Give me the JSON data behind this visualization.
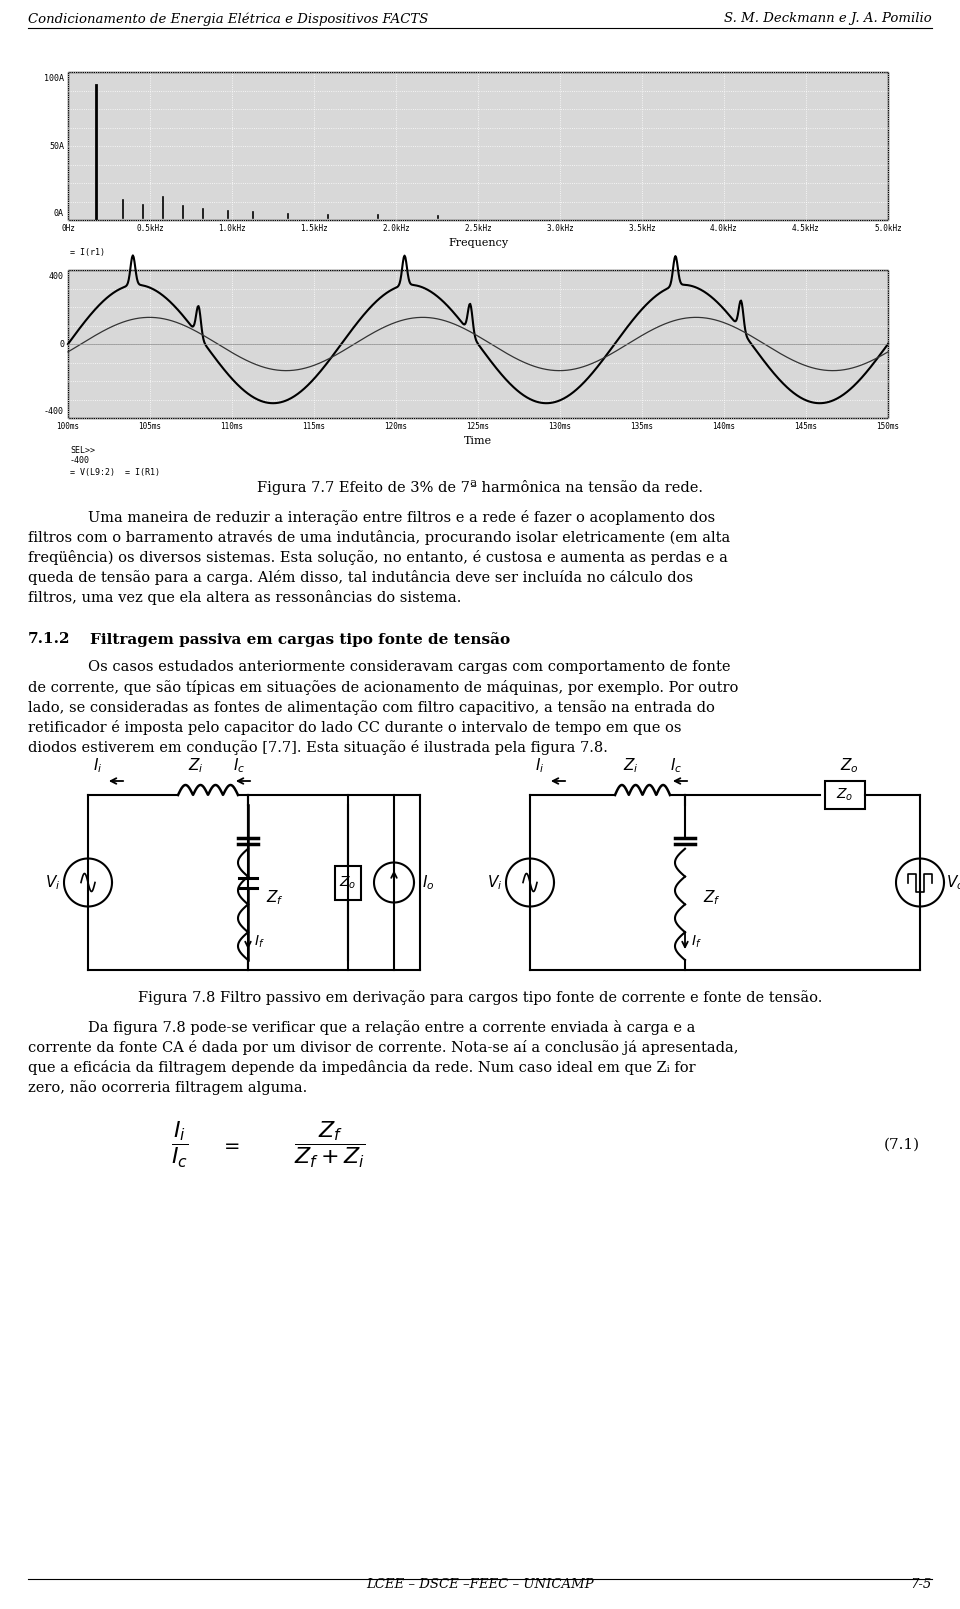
{
  "header_left": "Condicionamento de Energia Elétrica e Dispositivos FACTS",
  "header_right": "S. M. Deckmann e J. A. Pomilio",
  "footer_center": "LCEE – DSCE –FEEC – UNICAMP",
  "footer_right": "7-5",
  "fig_caption_1": "Figura 7.7 Efeito de 3% de 7ª harmônica na tensão da rede.",
  "fig_caption_2": "Figura 7.8 Filtro passivo em derivação para cargos tipo fonte de corrente e fonte de tensão.",
  "section_num": "7.1.2",
  "section_title": "Filtragem passiva em cargas tipo fonte de tensão",
  "eq1_num": "(7.1)",
  "bg_color": "#ffffff",
  "osc1_bg": "#d8d8d8",
  "osc2_bg": "#d8d8d8",
  "lines_p1": [
    "Uma maneira de reduzir a interação entre filtros e a rede é fazer o acoplamento dos",
    "filtros com o barramento através de uma indutância, procurando isolar eletricamente (em alta",
    "freqüência) os diversos sistemas. Esta solução, no entanto, é custosa e aumenta as perdas e a",
    "queda de tensão para a carga. Além disso, tal indutância deve ser incluída no cálculo dos",
    "filtros, uma vez que ela altera as ressonâncias do sistema."
  ],
  "lines_p2": [
    "Os casos estudados anteriormente consideravam cargas com comportamento de fonte",
    "de corrente, que são típicas em situações de acionamento de máquinas, por exemplo. Por outro",
    "lado, se consideradas as fontes de alimentação com filtro capacitivo, a tensão na entrada do",
    "retificador é imposta pelo capacitor do lado CC durante o intervalo de tempo em que os",
    "diodos estiverem em condução [7.7]. Esta situação é ilustrada pela figura 7.8."
  ],
  "lines_p3": [
    "Da figura 7.8 pode-se verificar que a relação entre a corrente enviada à carga e a",
    "corrente da fonte CA é dada por um divisor de corrente. Nota-se aí a conclusão já apresentada,",
    "que a eficácia da filtragem depende da impedância da rede. Num caso ideal em que Zᵢ for",
    "zero, não ocorreria filtragem alguma."
  ],
  "freq_labels": [
    "0Hz",
    "0.5kHz",
    "1.0kHz",
    "1.5kHz",
    "2.0kHz",
    "2.5kHz",
    "3.0kHz",
    "3.5kHz",
    "4.0kHz",
    "4.5kHz",
    "5.0kHz"
  ],
  "time_labels": [
    "100ms",
    "105ms",
    "110ms",
    "115ms",
    "120ms",
    "125ms",
    "130ms",
    "135ms",
    "140ms",
    "145ms",
    "150ms"
  ]
}
